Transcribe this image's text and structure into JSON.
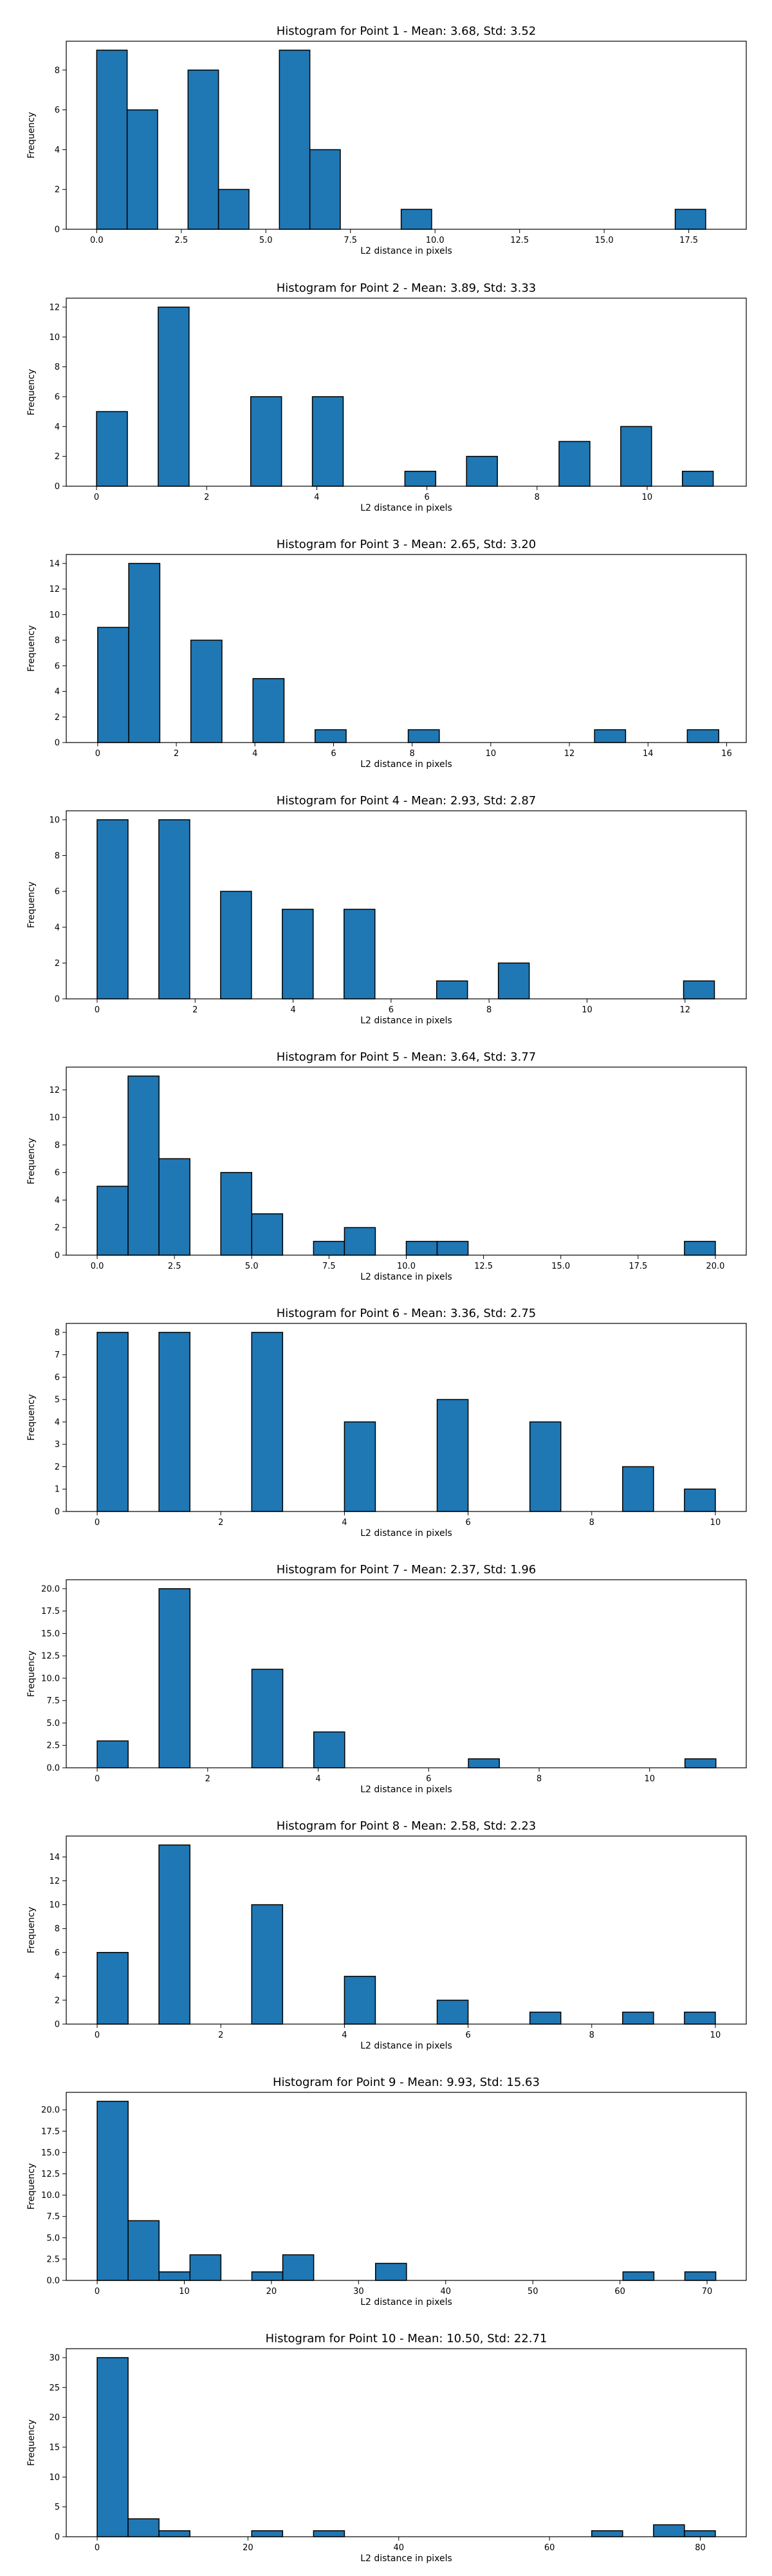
{
  "colors": {
    "bar": "#1f77b4",
    "edge": "#000000",
    "background": "#ffffff"
  },
  "chart_data": [
    {
      "type": "bar",
      "title": "Histogram for Point 1 - Mean: 3.68, Std: 3.52",
      "xlabel": "L2 distance in pixels",
      "ylabel": "Frequency",
      "xlim": [
        -0.9,
        19.2
      ],
      "ylim": [
        0,
        9.45
      ],
      "xticks": [
        0,
        2.5,
        5,
        7.5,
        10,
        12.5,
        15,
        17.5
      ],
      "xtick_labels": [
        "0.0",
        "2.5",
        "5.0",
        "7.5",
        "10.0",
        "12.5",
        "15.0",
        "17.5"
      ],
      "yticks": [
        0,
        2,
        4,
        6,
        8
      ],
      "ytick_labels": [
        "0",
        "2",
        "4",
        "6",
        "8"
      ],
      "bins": [
        {
          "x0": 0.0,
          "x1": 0.9,
          "count": 9
        },
        {
          "x0": 0.9,
          "x1": 1.8,
          "count": 6
        },
        {
          "x0": 2.7,
          "x1": 3.6,
          "count": 8
        },
        {
          "x0": 3.6,
          "x1": 4.5,
          "count": 2
        },
        {
          "x0": 5.4,
          "x1": 6.3,
          "count": 9
        },
        {
          "x0": 6.3,
          "x1": 7.2,
          "count": 4
        },
        {
          "x0": 9.0,
          "x1": 9.9,
          "count": 1
        },
        {
          "x0": 17.1,
          "x1": 18.0,
          "count": 1
        }
      ]
    },
    {
      "type": "bar",
      "title": "Histogram for Point 2 - Mean: 3.89, Std: 3.33",
      "xlabel": "L2 distance in pixels",
      "ylabel": "Frequency",
      "xlim": [
        -0.55,
        11.8
      ],
      "ylim": [
        0,
        12.6
      ],
      "xticks": [
        0,
        2,
        4,
        6,
        8,
        10
      ],
      "xtick_labels": [
        "0",
        "2",
        "4",
        "6",
        "8",
        "10"
      ],
      "yticks": [
        0,
        2,
        4,
        6,
        8,
        10,
        12
      ],
      "ytick_labels": [
        "0",
        "2",
        "4",
        "6",
        "8",
        "10",
        "12"
      ],
      "bins": [
        {
          "x0": 0.0,
          "x1": 0.56,
          "count": 5
        },
        {
          "x0": 1.12,
          "x1": 1.68,
          "count": 12
        },
        {
          "x0": 2.8,
          "x1": 3.36,
          "count": 6
        },
        {
          "x0": 3.92,
          "x1": 4.48,
          "count": 6
        },
        {
          "x0": 5.6,
          "x1": 6.16,
          "count": 1
        },
        {
          "x0": 6.72,
          "x1": 7.28,
          "count": 2
        },
        {
          "x0": 8.4,
          "x1": 8.96,
          "count": 3
        },
        {
          "x0": 9.52,
          "x1": 10.08,
          "count": 4
        },
        {
          "x0": 10.64,
          "x1": 11.2,
          "count": 1
        }
      ]
    },
    {
      "type": "bar",
      "title": "Histogram for Point 3 - Mean: 2.65, Std: 3.20",
      "xlabel": "L2 distance in pixels",
      "ylabel": "Frequency",
      "xlim": [
        -0.8,
        16.5
      ],
      "ylim": [
        0,
        14.7
      ],
      "xticks": [
        0,
        2,
        4,
        6,
        8,
        10,
        12,
        14,
        16
      ],
      "xtick_labels": [
        "0",
        "2",
        "4",
        "6",
        "8",
        "10",
        "12",
        "14",
        "16"
      ],
      "yticks": [
        0,
        2,
        4,
        6,
        8,
        10,
        12,
        14
      ],
      "ytick_labels": [
        "0",
        "2",
        "4",
        "6",
        "8",
        "10",
        "12",
        "14"
      ],
      "bins": [
        {
          "x0": 0.0,
          "x1": 0.79,
          "count": 9
        },
        {
          "x0": 0.79,
          "x1": 1.58,
          "count": 14
        },
        {
          "x0": 2.37,
          "x1": 3.16,
          "count": 8
        },
        {
          "x0": 3.95,
          "x1": 4.74,
          "count": 5
        },
        {
          "x0": 5.53,
          "x1": 6.32,
          "count": 1
        },
        {
          "x0": 7.9,
          "x1": 8.69,
          "count": 1
        },
        {
          "x0": 12.64,
          "x1": 13.43,
          "count": 1
        },
        {
          "x0": 15.0,
          "x1": 15.8,
          "count": 1
        }
      ]
    },
    {
      "type": "bar",
      "title": "Histogram for Point 4 - Mean: 2.93, Std: 2.87",
      "xlabel": "L2 distance in pixels",
      "ylabel": "Frequency",
      "xlim": [
        -0.63,
        13.25
      ],
      "ylim": [
        0,
        10.5
      ],
      "xticks": [
        0,
        2,
        4,
        6,
        8,
        10,
        12
      ],
      "xtick_labels": [
        "0",
        "2",
        "4",
        "6",
        "8",
        "10",
        "12"
      ],
      "yticks": [
        0,
        2,
        4,
        6,
        8,
        10
      ],
      "ytick_labels": [
        "0",
        "2",
        "4",
        "6",
        "8",
        "10"
      ],
      "bins": [
        {
          "x0": 0.0,
          "x1": 0.63,
          "count": 10
        },
        {
          "x0": 1.26,
          "x1": 1.89,
          "count": 10
        },
        {
          "x0": 2.52,
          "x1": 3.15,
          "count": 6
        },
        {
          "x0": 3.78,
          "x1": 4.41,
          "count": 5
        },
        {
          "x0": 5.04,
          "x1": 5.67,
          "count": 5
        },
        {
          "x0": 6.93,
          "x1": 7.56,
          "count": 1
        },
        {
          "x0": 8.19,
          "x1": 8.82,
          "count": 2
        },
        {
          "x0": 11.97,
          "x1": 12.6,
          "count": 1
        }
      ]
    },
    {
      "type": "bar",
      "title": "Histogram for Point 5 - Mean: 3.64, Std: 3.77",
      "xlabel": "L2 distance in pixels",
      "ylabel": "Frequency",
      "xlim": [
        -1.0,
        21.0
      ],
      "ylim": [
        0,
        13.65
      ],
      "xticks": [
        0,
        2.5,
        5,
        7.5,
        10,
        12.5,
        15,
        17.5,
        20
      ],
      "xtick_labels": [
        "0.0",
        "2.5",
        "5.0",
        "7.5",
        "10.0",
        "12.5",
        "15.0",
        "17.5",
        "20.0"
      ],
      "yticks": [
        0,
        2,
        4,
        6,
        8,
        10,
        12
      ],
      "ytick_labels": [
        "0",
        "2",
        "4",
        "6",
        "8",
        "10",
        "12"
      ],
      "bins": [
        {
          "x0": 0.0,
          "x1": 1.0,
          "count": 5
        },
        {
          "x0": 1.0,
          "x1": 2.0,
          "count": 13
        },
        {
          "x0": 2.0,
          "x1": 3.0,
          "count": 7
        },
        {
          "x0": 4.0,
          "x1": 5.0,
          "count": 6
        },
        {
          "x0": 5.0,
          "x1": 6.0,
          "count": 3
        },
        {
          "x0": 7.0,
          "x1": 8.0,
          "count": 1
        },
        {
          "x0": 8.0,
          "x1": 9.0,
          "count": 2
        },
        {
          "x0": 10.0,
          "x1": 11.0,
          "count": 1
        },
        {
          "x0": 11.0,
          "x1": 12.0,
          "count": 1
        },
        {
          "x0": 19.0,
          "x1": 20.0,
          "count": 1
        }
      ]
    },
    {
      "type": "bar",
      "title": "Histogram for Point 6 - Mean: 3.36, Std: 2.75",
      "xlabel": "L2 distance in pixels",
      "ylabel": "Frequency",
      "xlim": [
        -0.5,
        10.5
      ],
      "ylim": [
        0,
        8.4
      ],
      "xticks": [
        0,
        2,
        4,
        6,
        8,
        10
      ],
      "xtick_labels": [
        "0",
        "2",
        "4",
        "6",
        "8",
        "10"
      ],
      "yticks": [
        0,
        1,
        2,
        3,
        4,
        5,
        6,
        7,
        8
      ],
      "ytick_labels": [
        "0",
        "1",
        "2",
        "3",
        "4",
        "5",
        "6",
        "7",
        "8"
      ],
      "bins": [
        {
          "x0": 0.0,
          "x1": 0.5,
          "count": 8
        },
        {
          "x0": 1.0,
          "x1": 1.5,
          "count": 8
        },
        {
          "x0": 2.5,
          "x1": 3.0,
          "count": 8
        },
        {
          "x0": 4.0,
          "x1": 4.5,
          "count": 4
        },
        {
          "x0": 5.5,
          "x1": 6.0,
          "count": 5
        },
        {
          "x0": 7.0,
          "x1": 7.5,
          "count": 4
        },
        {
          "x0": 8.5,
          "x1": 9.0,
          "count": 2
        },
        {
          "x0": 9.5,
          "x1": 10.0,
          "count": 1
        }
      ]
    },
    {
      "type": "bar",
      "title": "Histogram for Point 7 - Mean: 2.37, Std: 1.96",
      "xlabel": "L2 distance in pixels",
      "ylabel": "Frequency",
      "xlim": [
        -0.56,
        11.75
      ],
      "ylim": [
        0,
        21.0
      ],
      "xticks": [
        0,
        2,
        4,
        6,
        8,
        10
      ],
      "xtick_labels": [
        "0",
        "2",
        "4",
        "6",
        "8",
        "10"
      ],
      "yticks": [
        0,
        2.5,
        5,
        7.5,
        10,
        12.5,
        15,
        17.5,
        20
      ],
      "ytick_labels": [
        "0.0",
        "2.5",
        "5.0",
        "7.5",
        "10.0",
        "12.5",
        "15.0",
        "17.5",
        "20.0"
      ],
      "bins": [
        {
          "x0": 0.0,
          "x1": 0.56,
          "count": 3
        },
        {
          "x0": 1.12,
          "x1": 1.68,
          "count": 20
        },
        {
          "x0": 2.8,
          "x1": 3.36,
          "count": 11
        },
        {
          "x0": 3.92,
          "x1": 4.48,
          "count": 4
        },
        {
          "x0": 6.72,
          "x1": 7.28,
          "count": 1
        },
        {
          "x0": 10.64,
          "x1": 11.2,
          "count": 1
        }
      ]
    },
    {
      "type": "bar",
      "title": "Histogram for Point 8 - Mean: 2.58, Std: 2.23",
      "xlabel": "L2 distance in pixels",
      "ylabel": "Frequency",
      "xlim": [
        -0.5,
        10.5
      ],
      "ylim": [
        0,
        15.75
      ],
      "xticks": [
        0,
        2,
        4,
        6,
        8,
        10
      ],
      "xtick_labels": [
        "0",
        "2",
        "4",
        "6",
        "8",
        "10"
      ],
      "yticks": [
        0,
        2,
        4,
        6,
        8,
        10,
        12,
        14
      ],
      "ytick_labels": [
        "0",
        "2",
        "4",
        "6",
        "8",
        "10",
        "12",
        "14"
      ],
      "bins": [
        {
          "x0": 0.0,
          "x1": 0.5,
          "count": 6
        },
        {
          "x0": 1.0,
          "x1": 1.5,
          "count": 15
        },
        {
          "x0": 2.5,
          "x1": 3.0,
          "count": 10
        },
        {
          "x0": 4.0,
          "x1": 4.5,
          "count": 4
        },
        {
          "x0": 5.5,
          "x1": 6.0,
          "count": 2
        },
        {
          "x0": 7.0,
          "x1": 7.5,
          "count": 1
        },
        {
          "x0": 8.5,
          "x1": 9.0,
          "count": 1
        },
        {
          "x0": 9.5,
          "x1": 10.0,
          "count": 1
        }
      ]
    },
    {
      "type": "bar",
      "title": "Histogram for Point 9 - Mean: 9.93, Std: 15.63",
      "xlabel": "L2 distance in pixels",
      "ylabel": "Frequency",
      "xlim": [
        -3.55,
        74.5
      ],
      "ylim": [
        0,
        22.05
      ],
      "xticks": [
        0,
        10,
        20,
        30,
        40,
        50,
        60,
        70
      ],
      "xtick_labels": [
        "0",
        "10",
        "20",
        "30",
        "40",
        "50",
        "60",
        "70"
      ],
      "yticks": [
        0,
        2.5,
        5,
        7.5,
        10,
        12.5,
        15,
        17.5,
        20
      ],
      "ytick_labels": [
        "0.0",
        "2.5",
        "5.0",
        "7.5",
        "10.0",
        "12.5",
        "15.0",
        "17.5",
        "20.0"
      ],
      "bins": [
        {
          "x0": 0.0,
          "x1": 3.55,
          "count": 21
        },
        {
          "x0": 3.55,
          "x1": 7.1,
          "count": 7
        },
        {
          "x0": 7.1,
          "x1": 10.65,
          "count": 1
        },
        {
          "x0": 10.65,
          "x1": 14.2,
          "count": 3
        },
        {
          "x0": 17.75,
          "x1": 21.3,
          "count": 1
        },
        {
          "x0": 21.3,
          "x1": 24.85,
          "count": 3
        },
        {
          "x0": 31.95,
          "x1": 35.5,
          "count": 2
        },
        {
          "x0": 60.35,
          "x1": 63.9,
          "count": 1
        },
        {
          "x0": 67.45,
          "x1": 71.0,
          "count": 1
        }
      ]
    },
    {
      "type": "bar",
      "title": "Histogram for Point 10 - Mean: 10.50, Std: 22.71",
      "xlabel": "L2 distance in pixels",
      "ylabel": "Frequency",
      "xlim": [
        -4.1,
        86.1
      ],
      "ylim": [
        0,
        31.5
      ],
      "xticks": [
        0,
        20,
        40,
        60,
        80
      ],
      "xtick_labels": [
        "0",
        "20",
        "40",
        "60",
        "80"
      ],
      "yticks": [
        0,
        5,
        10,
        15,
        20,
        25,
        30
      ],
      "ytick_labels": [
        "0",
        "5",
        "10",
        "15",
        "20",
        "25",
        "30"
      ],
      "bins": [
        {
          "x0": 0.0,
          "x1": 4.1,
          "count": 30
        },
        {
          "x0": 4.1,
          "x1": 8.2,
          "count": 3
        },
        {
          "x0": 8.2,
          "x1": 12.3,
          "count": 1
        },
        {
          "x0": 20.5,
          "x1": 24.6,
          "count": 1
        },
        {
          "x0": 28.7,
          "x1": 32.8,
          "count": 1
        },
        {
          "x0": 65.6,
          "x1": 69.7,
          "count": 1
        },
        {
          "x0": 73.8,
          "x1": 77.9,
          "count": 2
        },
        {
          "x0": 77.9,
          "x1": 82.0,
          "count": 1
        }
      ]
    }
  ]
}
